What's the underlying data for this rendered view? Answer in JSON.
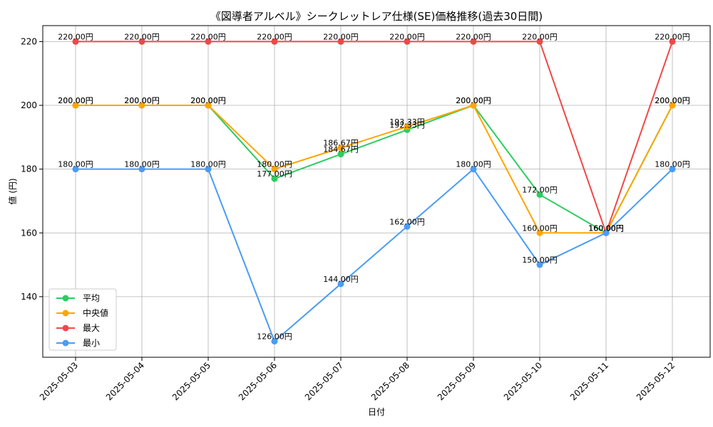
{
  "chart_data": {
    "type": "line",
    "title": "《図導者アルベル》シークレットレア仕様(SE)価格推移(過去30日間)",
    "xlabel": "日付",
    "ylabel": "値 (円)",
    "categories": [
      "2025-05-03",
      "2025-05-04",
      "2025-05-05",
      "2025-05-06",
      "2025-05-07",
      "2025-05-08",
      "2025-05-09",
      "2025-05-10",
      "2025-05-11",
      "2025-05-12"
    ],
    "ylim": [
      121,
      225
    ],
    "yticks": [
      140,
      160,
      180,
      200,
      220
    ],
    "grid": true,
    "legend_position": "lower-left",
    "value_suffix": "円",
    "series": [
      {
        "name": "平均",
        "color": "#2ecc5f",
        "values": [
          200,
          200,
          200,
          177,
          184.67,
          192.33,
          200,
          172,
          160,
          200
        ],
        "labels": [
          "200.00円",
          "200.00円",
          "200.00円",
          "177.00円",
          "184.67円",
          "192.33円",
          "200.00円",
          "172.00円",
          "160.00円",
          "200.00円"
        ]
      },
      {
        "name": "中央値",
        "color": "#ffa500",
        "values": [
          200,
          200,
          200,
          180,
          186.67,
          193.33,
          200,
          160,
          160,
          200
        ],
        "labels": [
          "200.00円",
          "200.00円",
          "200.00円",
          "180.00円",
          "186.67円",
          "193.33円",
          "200.00円",
          "160.00円",
          "160.00円",
          "200.00円"
        ]
      },
      {
        "name": "最大",
        "color": "#f04848",
        "values": [
          220,
          220,
          220,
          220,
          220,
          220,
          220,
          220,
          160,
          220
        ],
        "labels": [
          "220.00円",
          "220.00円",
          "220.00円",
          "220.00円",
          "220.00円",
          "220.00円",
          "220.00円",
          "220.00円",
          "160.00円",
          "220.00円"
        ]
      },
      {
        "name": "最小",
        "color": "#4a9cf5",
        "values": [
          180,
          180,
          180,
          126,
          144,
          162,
          180,
          150,
          160,
          180
        ],
        "labels": [
          "180.00円",
          "180.00円",
          "180.00円",
          "126.00円",
          "144.00円",
          "162.00円",
          "180.00円",
          "150.00円",
          "160.00円",
          "180.00円"
        ]
      }
    ]
  }
}
